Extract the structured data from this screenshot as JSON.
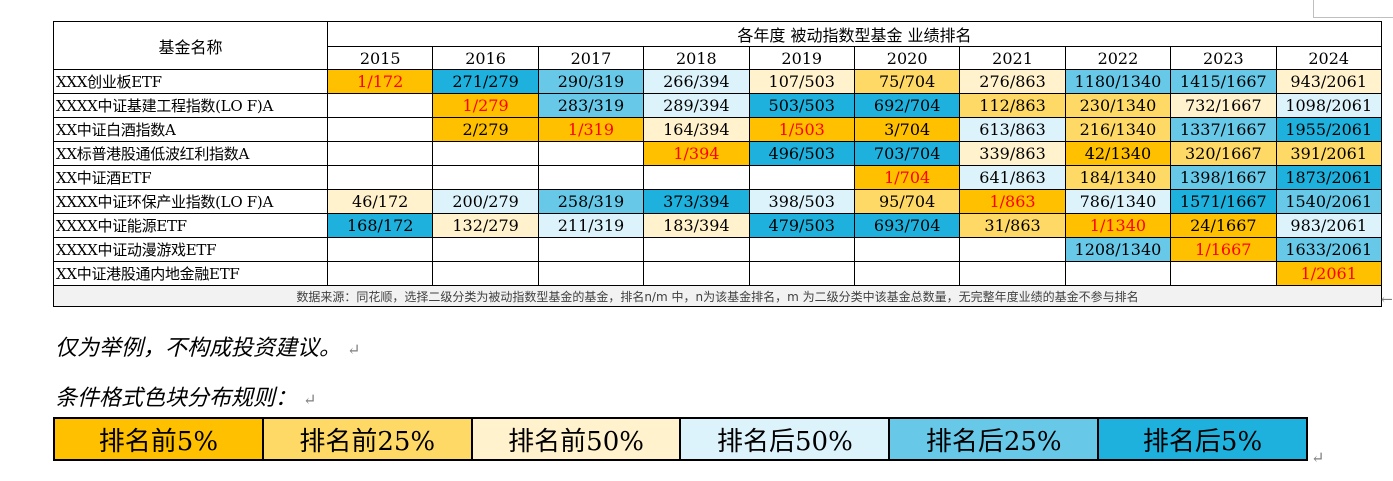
{
  "table": {
    "header_name": "基金名称",
    "header_title": "各年度 被动指数型基金 业绩排名",
    "years": [
      "2015",
      "2016",
      "2017",
      "2018",
      "2019",
      "2020",
      "2021",
      "2022",
      "2023",
      "2024"
    ],
    "rows": [
      {
        "name": "XXX创业板ETF",
        "cells": [
          {
            "v": "1/172",
            "c": "c0",
            "red": true
          },
          {
            "v": "271/279",
            "c": "c5"
          },
          {
            "v": "290/319",
            "c": "c4"
          },
          {
            "v": "266/394",
            "c": "c3"
          },
          {
            "v": "107/503",
            "c": "c2"
          },
          {
            "v": "75/704",
            "c": "c1"
          },
          {
            "v": "276/863",
            "c": "c2"
          },
          {
            "v": "1180/1340",
            "c": "c4"
          },
          {
            "v": "1415/1667",
            "c": "c4"
          },
          {
            "v": "943/2061",
            "c": "c2"
          }
        ]
      },
      {
        "name": "XXXX中证基建工程指数(LO F)A",
        "cells": [
          {
            "v": "",
            "c": "cw"
          },
          {
            "v": "1/279",
            "c": "c0",
            "red": true
          },
          {
            "v": "283/319",
            "c": "c4"
          },
          {
            "v": "289/394",
            "c": "c3"
          },
          {
            "v": "503/503",
            "c": "c5"
          },
          {
            "v": "692/704",
            "c": "c5"
          },
          {
            "v": "112/863",
            "c": "c1"
          },
          {
            "v": "230/1340",
            "c": "c1"
          },
          {
            "v": "732/1667",
            "c": "c2"
          },
          {
            "v": "1098/2061",
            "c": "c3"
          }
        ]
      },
      {
        "name": "XX中证白酒指数A",
        "cells": [
          {
            "v": "",
            "c": "cw"
          },
          {
            "v": "2/279",
            "c": "c0"
          },
          {
            "v": "1/319",
            "c": "c0",
            "red": true
          },
          {
            "v": "164/394",
            "c": "c2"
          },
          {
            "v": "1/503",
            "c": "c0",
            "red": true
          },
          {
            "v": "3/704",
            "c": "c0"
          },
          {
            "v": "613/863",
            "c": "c3"
          },
          {
            "v": "216/1340",
            "c": "c1"
          },
          {
            "v": "1337/1667",
            "c": "c4"
          },
          {
            "v": "1955/2061",
            "c": "c5"
          }
        ]
      },
      {
        "name": "XX标普港股通低波红利指数A",
        "cells": [
          {
            "v": "",
            "c": "cw"
          },
          {
            "v": "",
            "c": "cw"
          },
          {
            "v": "",
            "c": "cw"
          },
          {
            "v": "1/394",
            "c": "c0",
            "red": true
          },
          {
            "v": "496/503",
            "c": "c5"
          },
          {
            "v": "703/704",
            "c": "c5"
          },
          {
            "v": "339/863",
            "c": "c2"
          },
          {
            "v": "42/1340",
            "c": "c0"
          },
          {
            "v": "320/1667",
            "c": "c1"
          },
          {
            "v": "391/2061",
            "c": "c1"
          }
        ]
      },
      {
        "name": "XX中证酒ETF",
        "cells": [
          {
            "v": "",
            "c": "cw"
          },
          {
            "v": "",
            "c": "cw"
          },
          {
            "v": "",
            "c": "cw"
          },
          {
            "v": "",
            "c": "cw"
          },
          {
            "v": "",
            "c": "cw"
          },
          {
            "v": "1/704",
            "c": "c0",
            "red": true
          },
          {
            "v": "641/863",
            "c": "c3"
          },
          {
            "v": "184/1340",
            "c": "c1"
          },
          {
            "v": "1398/1667",
            "c": "c4"
          },
          {
            "v": "1873/2061",
            "c": "c5"
          }
        ]
      },
      {
        "name": "XXXX中证环保产业指数(LO F)A",
        "cells": [
          {
            "v": "46/172",
            "c": "c2"
          },
          {
            "v": "200/279",
            "c": "c3"
          },
          {
            "v": "258/319",
            "c": "c4"
          },
          {
            "v": "373/394",
            "c": "c5"
          },
          {
            "v": "398/503",
            "c": "c3"
          },
          {
            "v": "95/704",
            "c": "c1"
          },
          {
            "v": "1/863",
            "c": "c0",
            "red": true
          },
          {
            "v": "786/1340",
            "c": "c3"
          },
          {
            "v": "1571/1667",
            "c": "c5"
          },
          {
            "v": "1540/2061",
            "c": "c4"
          }
        ]
      },
      {
        "name": "XXXX中证能源ETF",
        "cells": [
          {
            "v": "168/172",
            "c": "c5"
          },
          {
            "v": "132/279",
            "c": "c2"
          },
          {
            "v": "211/319",
            "c": "c3"
          },
          {
            "v": "183/394",
            "c": "c2"
          },
          {
            "v": "479/503",
            "c": "c5"
          },
          {
            "v": "693/704",
            "c": "c5"
          },
          {
            "v": "31/863",
            "c": "c1"
          },
          {
            "v": "1/1340",
            "c": "c0",
            "red": true
          },
          {
            "v": "24/1667",
            "c": "c0"
          },
          {
            "v": "983/2061",
            "c": "c3"
          }
        ]
      },
      {
        "name": "XXXX中证动漫游戏ETF",
        "cells": [
          {
            "v": "",
            "c": "cw"
          },
          {
            "v": "",
            "c": "cw"
          },
          {
            "v": "",
            "c": "cw"
          },
          {
            "v": "",
            "c": "cw"
          },
          {
            "v": "",
            "c": "cw"
          },
          {
            "v": "",
            "c": "cw"
          },
          {
            "v": "",
            "c": "cw"
          },
          {
            "v": "1208/1340",
            "c": "c4"
          },
          {
            "v": "1/1667",
            "c": "c0",
            "red": true
          },
          {
            "v": "1633/2061",
            "c": "c4"
          }
        ]
      },
      {
        "name": "XX中证港股通内地金融ETF",
        "cells": [
          {
            "v": "",
            "c": "cw"
          },
          {
            "v": "",
            "c": "cw"
          },
          {
            "v": "",
            "c": "cw"
          },
          {
            "v": "",
            "c": "cw"
          },
          {
            "v": "",
            "c": "cw"
          },
          {
            "v": "",
            "c": "cw"
          },
          {
            "v": "",
            "c": "cw"
          },
          {
            "v": "",
            "c": "cw"
          },
          {
            "v": "",
            "c": "cw"
          },
          {
            "v": "1/2061",
            "c": "c0",
            "red": true
          }
        ]
      }
    ],
    "source": "数据来源：同花顺，选择二级分类为被动指数型基金的基金，排名n/m 中，n为该基金排名，m 为二级分类中该基金总数量，无完整年度业绩的基金不参与排名"
  },
  "notes": {
    "disclaimer": "仅为举例，不构成投资建议。",
    "legend_title": "条件格式色块分布规则："
  },
  "legend": [
    {
      "label": "排名前5%",
      "c": "c0"
    },
    {
      "label": "排名前25%",
      "c": "c1"
    },
    {
      "label": "排名前50%",
      "c": "c2"
    },
    {
      "label": "排名后50%",
      "c": "c3"
    },
    {
      "label": "排名后25%",
      "c": "c4"
    },
    {
      "label": "排名后5%",
      "c": "c5"
    }
  ],
  "colors": {
    "top5": "#ffc000",
    "top25": "#ffd966",
    "top50": "#fff2cc",
    "bottom50": "#ddf3fb",
    "bottom25": "#67c8e8",
    "bottom5": "#1fb1dd",
    "highlight_text": "#ff0000"
  },
  "marks": {
    "arrow": "←",
    "return": "↵"
  }
}
